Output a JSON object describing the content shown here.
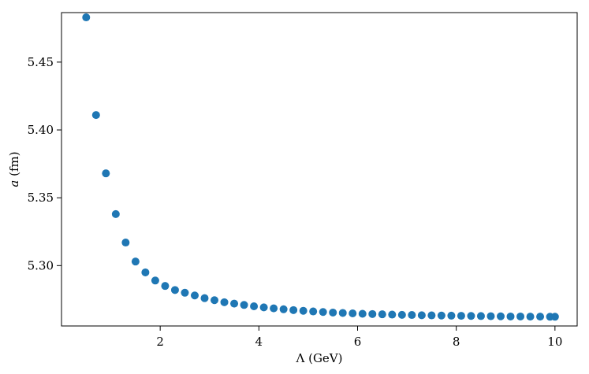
{
  "chart_data": {
    "type": "scatter",
    "xlabel": "Λ (GeV)",
    "ylabel_symbol": "a",
    "ylabel_unit": " (fm)",
    "xlim": [
      0.0,
      10.45
    ],
    "ylim": [
      5.2555,
      5.4865
    ],
    "xticks": [
      2,
      4,
      6,
      8,
      10
    ],
    "xtick_labels": [
      "2",
      "4",
      "6",
      "8",
      "10"
    ],
    "yticks": [
      5.3,
      5.35,
      5.4,
      5.45
    ],
    "ytick_labels": [
      "5.30",
      "5.35",
      "5.40",
      "5.45"
    ],
    "grid": false,
    "marker_color": "#1f77b4",
    "series": [
      {
        "x": [
          0.5,
          0.7,
          0.9,
          1.1,
          1.3,
          1.5,
          1.7,
          1.9,
          2.1,
          2.3,
          2.5,
          2.7,
          2.9,
          3.1,
          3.3,
          3.5,
          3.7,
          3.9,
          4.1,
          4.3,
          4.5,
          4.7,
          4.9,
          5.1,
          5.3,
          5.5,
          5.7,
          5.9,
          6.1,
          6.3,
          6.5,
          6.7,
          6.9,
          7.1,
          7.3,
          7.5,
          7.7,
          7.9,
          8.1,
          8.3,
          8.5,
          8.7,
          8.9,
          9.1,
          9.3,
          9.5,
          9.7,
          9.9,
          10.0
        ],
        "y": [
          5.483,
          5.411,
          5.368,
          5.338,
          5.317,
          5.303,
          5.295,
          5.289,
          5.285,
          5.282,
          5.28,
          5.278,
          5.276,
          5.2745,
          5.273,
          5.272,
          5.271,
          5.27,
          5.2692,
          5.2685,
          5.2678,
          5.2672,
          5.2667,
          5.2662,
          5.2658,
          5.2654,
          5.2651,
          5.2648,
          5.2645,
          5.2643,
          5.2641,
          5.2639,
          5.2637,
          5.2636,
          5.2634,
          5.2633,
          5.2632,
          5.2631,
          5.263,
          5.2629,
          5.2628,
          5.2627,
          5.2626,
          5.2625,
          5.2625,
          5.2624,
          5.2624,
          5.2623,
          5.2623
        ]
      }
    ]
  }
}
